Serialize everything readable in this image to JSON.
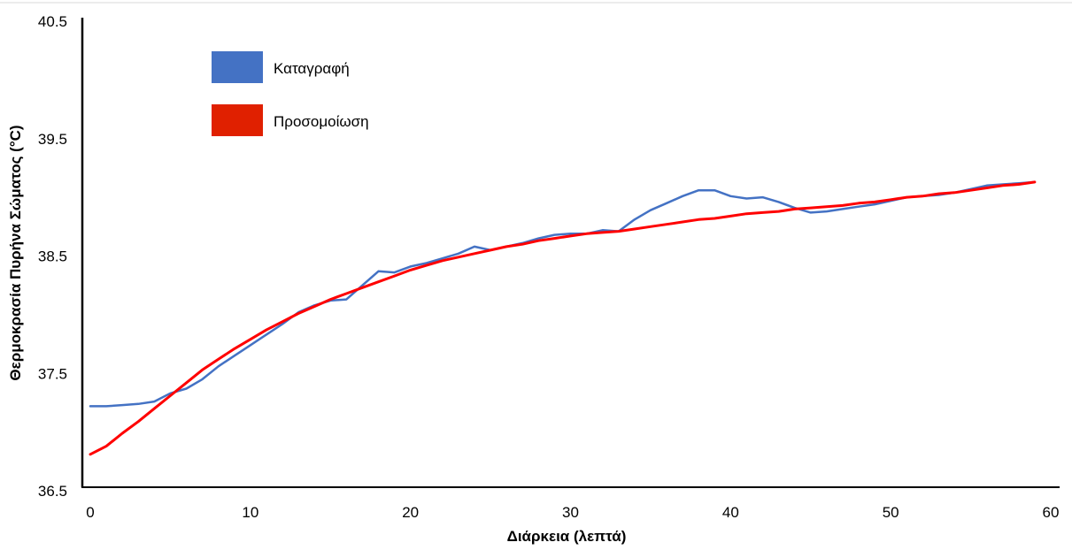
{
  "chart_data": {
    "type": "line",
    "xlabel": "Διάρκεια (λεπτά)",
    "ylabel": "Θερμοκρασία Πυρήνα Σώματος (°C)",
    "xlim": [
      0,
      60
    ],
    "ylim": [
      36.5,
      40.5
    ],
    "x_ticks": [
      "0",
      "10",
      "20",
      "30",
      "40",
      "50",
      "60"
    ],
    "y_ticks": [
      "36.5",
      "37.5",
      "38.5",
      "39.5",
      "40.5"
    ],
    "grid": false,
    "legend_position": "top-left",
    "series": [
      {
        "name": "Καταγραφή",
        "color": "#4472C4",
        "x": [
          0,
          1,
          2,
          3,
          4,
          5,
          6,
          7,
          8,
          9,
          10,
          11,
          12,
          13,
          14,
          15,
          16,
          17,
          18,
          19,
          20,
          21,
          22,
          23,
          24,
          25,
          26,
          27,
          28,
          29,
          30,
          31,
          32,
          33,
          34,
          35,
          36,
          37,
          38,
          39,
          40,
          41,
          42,
          43,
          44,
          45,
          46,
          47,
          48,
          49,
          50,
          51,
          52,
          53,
          54,
          55,
          56,
          57,
          58,
          59
        ],
        "values": [
          37.22,
          37.22,
          37.23,
          37.24,
          37.26,
          37.33,
          37.37,
          37.45,
          37.56,
          37.65,
          37.74,
          37.83,
          37.92,
          38.02,
          38.08,
          38.12,
          38.13,
          38.25,
          38.37,
          38.36,
          38.41,
          38.44,
          38.48,
          38.52,
          38.58,
          38.55,
          38.58,
          38.61,
          38.65,
          38.68,
          38.69,
          38.69,
          38.72,
          38.71,
          38.81,
          38.89,
          38.95,
          39.01,
          39.06,
          39.06,
          39.01,
          38.99,
          39.0,
          38.96,
          38.91,
          38.87,
          38.88,
          38.9,
          38.92,
          38.94,
          38.97,
          39.0,
          39.01,
          39.02,
          39.04,
          39.07,
          39.1,
          39.11,
          39.12,
          39.13
        ]
      },
      {
        "name": "Προσομοίωση",
        "color": "#FF0000",
        "x": [
          0,
          1,
          2,
          3,
          4,
          5,
          6,
          7,
          8,
          9,
          10,
          11,
          12,
          13,
          14,
          15,
          16,
          17,
          18,
          19,
          20,
          21,
          22,
          23,
          24,
          25,
          26,
          27,
          28,
          29,
          30,
          31,
          32,
          33,
          34,
          35,
          36,
          37,
          38,
          39,
          40,
          41,
          42,
          43,
          44,
          45,
          46,
          47,
          48,
          49,
          50,
          51,
          52,
          53,
          54,
          55,
          56,
          57,
          58,
          59
        ],
        "values": [
          36.81,
          36.88,
          36.99,
          37.09,
          37.2,
          37.31,
          37.42,
          37.53,
          37.62,
          37.71,
          37.79,
          37.87,
          37.94,
          38.01,
          38.07,
          38.13,
          38.18,
          38.23,
          38.28,
          38.33,
          38.38,
          38.42,
          38.46,
          38.49,
          38.52,
          38.55,
          38.58,
          38.6,
          38.63,
          38.65,
          38.67,
          38.69,
          38.7,
          38.71,
          38.73,
          38.75,
          38.77,
          38.79,
          38.81,
          38.82,
          38.84,
          38.86,
          38.87,
          38.88,
          38.9,
          38.91,
          38.92,
          38.93,
          38.95,
          38.96,
          38.98,
          39.0,
          39.01,
          39.03,
          39.04,
          39.06,
          39.08,
          39.1,
          39.11,
          39.13
        ]
      }
    ]
  }
}
